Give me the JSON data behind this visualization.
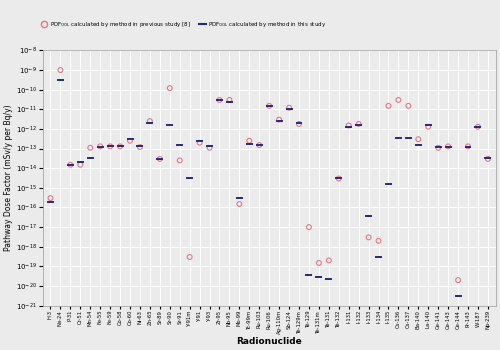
{
  "radionuclides": [
    "H-3",
    "Na-24",
    "P-31",
    "Cr-51",
    "Mn-54",
    "Fe-55",
    "Fe-59",
    "Co-58",
    "Co-60",
    "Ni-63",
    "Zn-65",
    "Sr-89",
    "Sr-90",
    "Sr-91",
    "Y-91m",
    "Y-91",
    "Y-93",
    "Zr-95",
    "Nb-95",
    "Mo-99",
    "Tc-99m",
    "Ru-103",
    "Ru-106",
    "Ag-110m",
    "Sb-124",
    "Te-129m",
    "Te-129",
    "Te-131m",
    "Te-131",
    "Te-132",
    "I-131",
    "I-132",
    "I-133",
    "I-134",
    "I-135",
    "Cs-136",
    "Cs-137",
    "Ba-140",
    "La-140",
    "Ce-141",
    "Ce-143",
    "Ce-144",
    "Pr-143",
    "W-187",
    "Np-239"
  ],
  "circle_values": [
    3e-16,
    1e-09,
    1.5e-14,
    1.5e-14,
    1.1e-13,
    1.3e-13,
    1.3e-13,
    1.3e-13,
    2.5e-13,
    1.2e-13,
    2.5e-12,
    3e-14,
    1.2e-10,
    2.5e-14,
    3e-19,
    2e-13,
    1.1e-13,
    3e-11,
    3e-11,
    1.5e-16,
    2.5e-13,
    1.5e-13,
    1.5e-11,
    3e-12,
    1.2e-11,
    1.8e-12,
    1e-17,
    1.5e-19,
    2e-19,
    3e-15,
    1.5e-12,
    1.8e-12,
    3e-18,
    2e-18,
    1.5e-11,
    3e-11,
    1.5e-11,
    3e-13,
    1.3e-12,
    1.1e-13,
    1.3e-13,
    2e-20,
    1.3e-13,
    1.3e-12,
    3e-14
  ],
  "dash_values": [
    2e-16,
    3e-10,
    1.5e-14,
    2e-14,
    3.5e-14,
    1.2e-13,
    1.3e-13,
    1.3e-13,
    3e-13,
    1.3e-13,
    2e-12,
    3e-14,
    1.5e-12,
    1.5e-13,
    3e-15,
    2.5e-13,
    1.3e-13,
    3e-11,
    2.5e-11,
    3e-16,
    1.8e-13,
    1.5e-13,
    1.4e-11,
    2.5e-12,
    1e-11,
    2e-12,
    3.5e-20,
    3e-20,
    2.3e-20,
    3e-15,
    1.3e-12,
    1.5e-12,
    3.5e-17,
    3e-19,
    1.5e-15,
    3.5e-13,
    3.5e-13,
    1.5e-13,
    1.5e-12,
    1.2e-13,
    1.2e-13,
    3e-21,
    1.2e-13,
    1.3e-12,
    3.5e-14
  ],
  "circle_color": "#e07888",
  "dash_color": "#28287a",
  "background_color": "#ebebeb",
  "plot_bg_color": "#ebebeb",
  "grid_color": "#ffffff",
  "ylabel": "Pathway Dose Factor (mSv/y per Bq/y)",
  "xlabel": "Radionuclide",
  "ylim_min": -21,
  "ylim_max": -8
}
